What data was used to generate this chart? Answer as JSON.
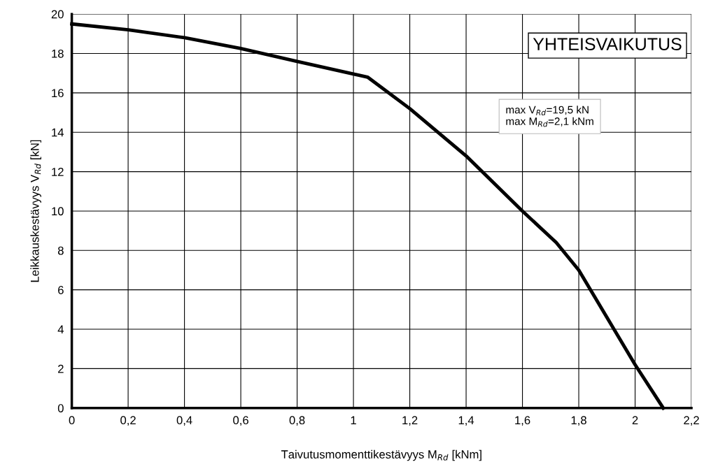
{
  "chart_data": {
    "type": "line",
    "xlabel": "Taivutusmomenttikestävyys M$_{Rd}$ [kNm]",
    "ylabel": "Leikkauskestävyys V$_{Rd}$ [kN]",
    "annotations": [
      "YHTEISVAIKUTUS",
      "max V$_{Rd}$=19,5 kN\nmax M$_{Rd}$=2,1 kNm"
    ],
    "series": [
      {
        "color": "#000000",
        "x": [
          0,
          0.2,
          0.4,
          0.6,
          0.8,
          1.05,
          1.2,
          1.4,
          1.6,
          1.72,
          1.8,
          2.0,
          2.1
        ],
        "values": [
          19.5,
          19.2,
          18.8,
          18.25,
          17.6,
          16.8,
          15.2,
          12.8,
          10.0,
          8.4,
          7.0,
          2.2,
          0
        ]
      }
    ],
    "xlim": [
      0,
      2.2
    ],
    "xticks": [
      0,
      {
        "value": 0.2,
        "label": "0,2"
      },
      {
        "value": 0.4,
        "label": "0,4"
      },
      {
        "value": 0.6,
        "label": "0,6"
      },
      {
        "value": 0.8,
        "label": "0,8"
      },
      1,
      {
        "value": 1.2,
        "label": "1,2"
      },
      {
        "value": 1.4,
        "label": "1,4"
      },
      {
        "value": 1.6,
        "label": "1,6"
      },
      {
        "value": 1.8,
        "label": "1,8"
      },
      2,
      {
        "value": 2.2,
        "label": "2,2"
      }
    ],
    "ylim": [
      0,
      20
    ],
    "yticks": [
      0,
      2,
      4,
      6,
      8,
      10,
      12,
      14,
      16,
      18,
      20
    ],
    "grid": true,
    "legend": false,
    "marker": "none",
    "line_style": "solid"
  }
}
